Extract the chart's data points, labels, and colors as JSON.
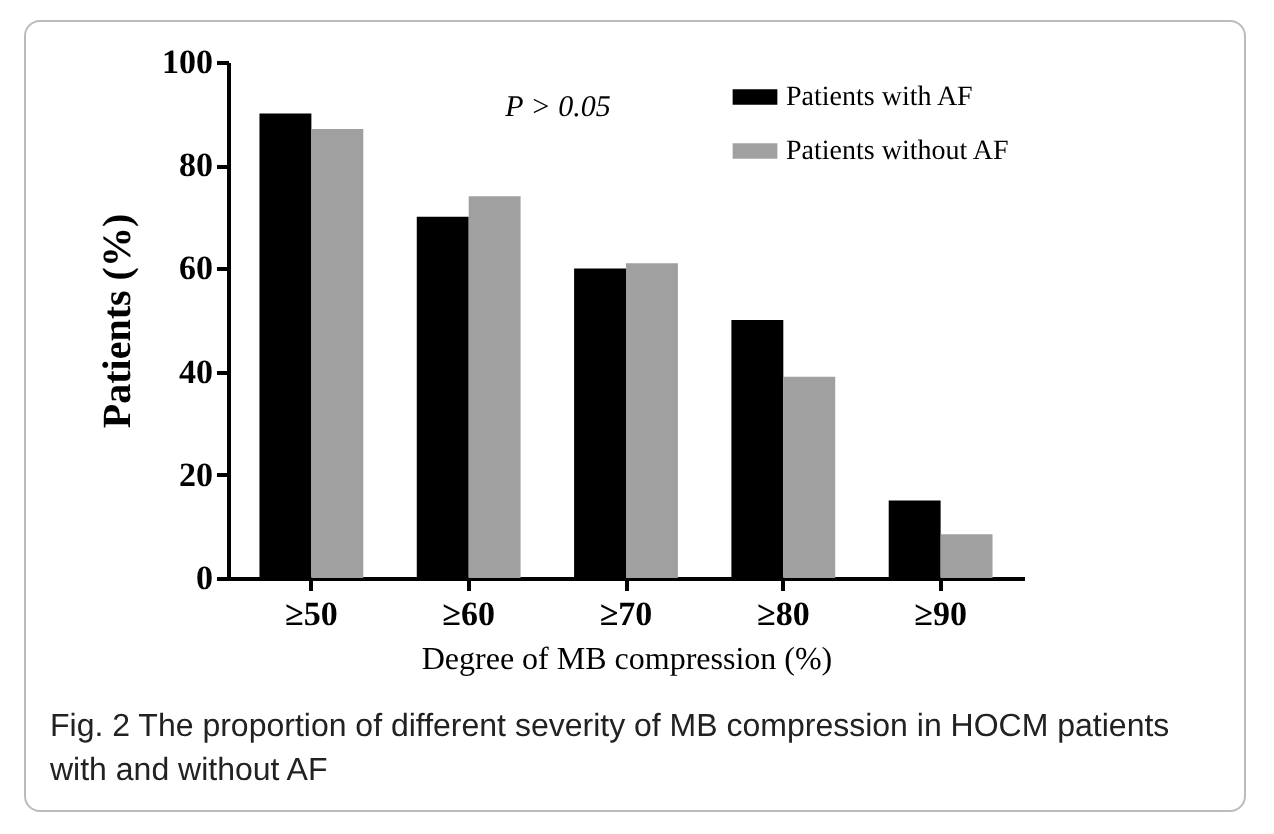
{
  "chart_data": {
    "type": "bar",
    "xlabel": "Degree of MB compression (%)",
    "ylabel": "Patients (%)",
    "categories": [
      "≥50",
      "≥60",
      "≥70",
      "≥80",
      "≥90"
    ],
    "series": [
      {
        "name": "Patients with AF",
        "color": "#000000",
        "values": [
          90,
          70,
          60,
          50,
          15
        ]
      },
      {
        "name": "Patients without AF",
        "color": "#a0a0a0",
        "values": [
          87,
          74,
          61,
          39,
          8.5
        ]
      }
    ],
    "ylim": [
      0,
      100
    ],
    "yticks": [
      0,
      20,
      40,
      60,
      80,
      100
    ],
    "grid": false,
    "legend": "top right",
    "annotations": [
      "P > 0.05",
      "Fig. 2 The proportion of different severity of MB compression in HOCM patients with and without AF"
    ]
  }
}
